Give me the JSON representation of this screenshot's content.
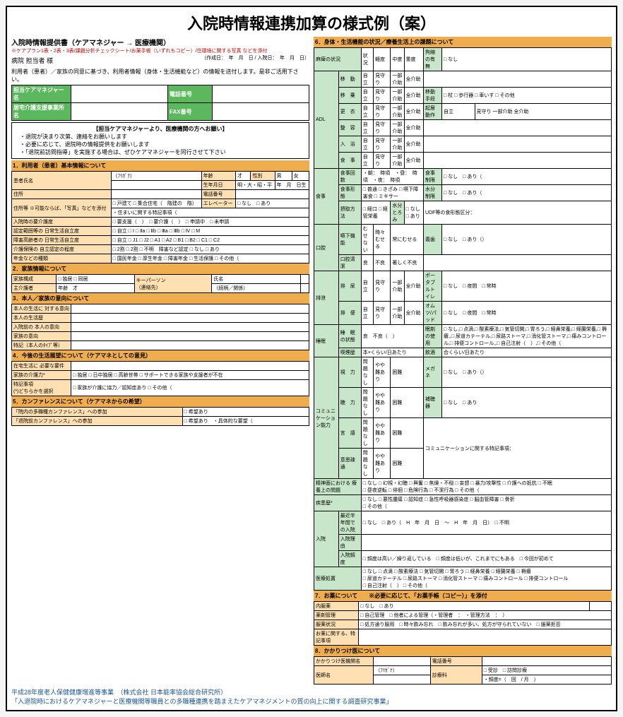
{
  "title": "入院時情報連携加算の様式例（案）",
  "header": {
    "doc_title": "入院時情報提供書（ケアマネジャー → 医療機関）",
    "sub_note": "※ケアプラン1表・2表・3表/課題分析チェックシート/お薬手帳（いずれもコピー）/住環境に関する写真 などを添付",
    "addressee": "病院 担当者 様",
    "date_label": "（作成日：　年　月　日 / 入院日：　年　月　日）",
    "usage_note": "利用者（患者）／家族の同意に基づき、利用者情報（身体・生活機能など）の情報を送付します。是非ご活用下さい。"
  },
  "contact": {
    "mgr_label": "担当ケアマネジャー名",
    "tel_label": "電話番号",
    "office_label": "居宅介護支援事業所名",
    "fax_label": "FAX番号"
  },
  "msgbox": {
    "title": "【担当ケアマネジャーより、医療機関の方へお願い】",
    "items": [
      "・退院が決まり次第、連絡をお願いします",
      "・必要に応じて、退院時の情報提供をお願いします",
      "・「退院前訪問指導」を実施する場合は、ぜひケアマネジャーを同行させて下さい"
    ]
  },
  "sec1": {
    "title": "1．利用者（患者）基本情報について",
    "name": "患者氏名",
    "furigana": "（ﾌﾘｶﾞﾅ）",
    "age": "年齢",
    "sai": "才",
    "sex": "性別",
    "m": "男",
    "f": "女",
    "dob": "生年月日",
    "era": "明・大・昭・平",
    "ymd": "年　月　日生",
    "tel": "電話番号",
    "addr": "住所",
    "addr_opt": "住所等\n※可能ならば、「写真」などを添付",
    "addr_types": [
      "□ 戸建て",
      "□ 集合住宅（　階建の　階）"
    ],
    "elev": "エレベーター",
    "elev_opt": "□ なし　□ あり",
    "live_note": "・住まいに関する特記事項（",
    "care_need": "入院時の要介護度",
    "care_opts": [
      "□ 要支援（　）",
      "□ 要介護（　）",
      "□ 申請中",
      "□ 未申請"
    ],
    "adl_label": "認定範囲等の\n日常生活自立度",
    "adl_opts": [
      "□ 自立",
      "□ Ⅰ",
      "□ Ⅱa",
      "□ Ⅱb",
      "□ Ⅲa",
      "□ Ⅲb",
      "□ Ⅳ",
      "□ M"
    ],
    "dem_label": "障害高齢者の\n日常生活自立度",
    "dem_opts": [
      "□ 自立",
      "□ J1",
      "□ J2",
      "□ A1",
      "□ A2",
      "□ B1",
      "□ B2",
      "□ C1",
      "□ C2"
    ],
    "handi": "介護保険の\n自立認定の程度",
    "handi_opts": [
      "□ 2割",
      "□ 2割",
      "□ 不明",
      "障害など認定",
      "□ なし",
      "□ あり"
    ],
    "pension": "年金などの種類",
    "pension_opts": [
      "□ 国民年金",
      "□ 厚生年金",
      "□ 障害年金",
      "□ 生活保護",
      "□ その他（"
    ]
  },
  "sec2": {
    "title": "2．家族情報について",
    "fam": "家族構成",
    "fam_opts": [
      "□ 独居",
      "□ 同居"
    ],
    "key": "キーパーソン",
    "key_sub": "（連絡先）",
    "key_name": "氏名",
    "key_rel": "（続柄／関係）",
    "caregiver": "主介護者",
    "age": "年齢",
    "sai": "才"
  },
  "sec3": {
    "title": "3．本人／家族の意向について",
    "self_disease": "本人の生活に\n対する意向",
    "self_life": "本人の生活歴",
    "pre_self": "入院前の\n本人の意向",
    "pre_fam": "家族の意向",
    "sp_note": "特記（本人のﾀｲﾌﾟ等）"
  },
  "sec4": {
    "title": "4．今後の生活展望について（ケアマネとしての意見）",
    "home": "在宅生活に\n必要な要件",
    "fam_care": "家族の介護力*",
    "fam_opts": [
      "□ 独居",
      "□ 日中独居",
      "□ 高齢世帯",
      "□ サポートできる家族や支援者が不在"
    ],
    "sp": "特記事項",
    "sp_sub": "(*)どちらかを選択",
    "sp_opts": [
      "□ 家族が介護に協力／認知症あり",
      "□ その他（"
    ]
  },
  "sec5": {
    "title": "5．カンファレンスについて（ケアマネからの希望）",
    "in_conf": "「院内の多職種カンファレンス」への参加",
    "hope": "□ 希望あり",
    "out_conf": "「退院前カンファレンス」への参加",
    "detail": "・具体的な要望（"
  },
  "sec6": {
    "title": "6．身体・生活機能の状況／療養生活上の課題について",
    "paralysis": "麻痺の状況",
    "para_opts": [
      "状況",
      "軽度",
      "中度",
      "重度"
    ],
    "contr": "拘縮の有無",
    "contr_opts": [
      "□ なし",
      "□ あり"
    ],
    "adl_title": "ADL",
    "adl_rows": [
      {
        "k": "移　動",
        "v": [
          "自立",
          "見守り",
          "一部介助",
          "全介助"
        ]
      },
      {
        "k": "移　乗",
        "v": [
          "自立",
          "見守り",
          "一部介助",
          "全介助"
        ],
        "ex": "移動手段",
        "eo": [
          "□ 杖",
          "□ 歩行器",
          "□ 車いす",
          "□ その他"
        ]
      },
      {
        "k": "更　衣",
        "v": [
          "自立",
          "見守り",
          "一部介助",
          "全介助"
        ],
        "ex": "起居動作",
        "eo": [
          "自立",
          "見守り",
          "一部介助",
          "全介助"
        ]
      },
      {
        "k": "整　容",
        "v": [
          "自立",
          "見守り",
          "一部介助",
          "全介助"
        ]
      },
      {
        "k": "入　浴",
        "v": [
          "自立",
          "見守り",
          "一部介助",
          "全介助"
        ]
      },
      {
        "k": "食　事",
        "v": [
          "自立",
          "見守り",
          "一部介助",
          "全介助"
        ]
      }
    ],
    "meal": "食事",
    "meal_times": "食事回数",
    "meal_tv": "・朝：　時頃　・昼：　時頃　・夜：　時頃",
    "meal_sp": "食事制限",
    "meal_spo": "□ なし　□ あり（",
    "meal_form": "食事形態",
    "meal_fo": [
      "□ 普通",
      "□ きざみ",
      "□ 嚥下障害食",
      "□ ミキサー"
    ],
    "water": "水分制限",
    "water_o": "□ なし　□ あり（",
    "intake": "摂取方法",
    "intake_o": [
      "□ 経口",
      "□ 経管栄養"
    ],
    "thick": "水分とろみ",
    "thick_o": "□ なし　□ あり",
    "udf": "UDF等の食形態区分：",
    "oral": "口腔",
    "oral_s": "嚥下機能",
    "oral_o": [
      "むせない",
      "時々むせる",
      "常にむせる"
    ],
    "teeth": "義歯",
    "teeth_o": "□ なし　□ あり（）",
    "care": "口腔清潔",
    "care_o": [
      "良",
      "不良",
      "著しく不良"
    ],
    "excr": "排泄",
    "exc_u": "排　尿",
    "exc_uo": [
      "自立",
      "見守り",
      "一部介助",
      "全介助"
    ],
    "pt": "ポータブルトイレ",
    "pt_o": "□ なし　□ 夜間　□ 常時",
    "exc_b": "排　便",
    "exc_bo": [
      "自立",
      "見守り",
      "一部介助",
      "全介助"
    ],
    "dp": "オムツ/パッド",
    "dp_o": "□ なし　□ 夜間　□ 常時",
    "sleep": "睡眠",
    "sleep_s": "睡　眠の状態",
    "sleep_o": [
      "良",
      "不良（　）"
    ],
    "med": "眠剤の使用",
    "med_o": [
      "□ なし",
      "□ 点滴",
      "□ 酸素療法",
      "□ 気管切開",
      "□ 胃ろう",
      "□ 経鼻栄養",
      "□ 経腸栄養",
      "□ 褥瘡",
      "",
      "□ 尿道カテーテル",
      "□ 尿路ストーマ",
      "□ 消化管ストーマ",
      "□ 痛みコントロール",
      "□ 排便コントロール",
      "",
      "□ 自己注射（　）",
      "□ その他（"
    ],
    "reg": "喫煙歴",
    "reg_o": "本×くらい/日あたり",
    "alc": "飲酒",
    "alc_o": "合くらい/日あたり",
    "comm": "コミュニケーション能力",
    "vis": "視　力",
    "vis_o": [
      "問題なし",
      "やや難あり",
      "困難"
    ],
    "glass": "メガネ",
    "glass_o": "□ なし　□ あり（）",
    "hear": "聴　力",
    "hear_o": [
      "問題なし",
      "やや難あり",
      "困難"
    ],
    "aid": "補聴器",
    "aid_o": "□ なし　□ あり",
    "spk": "言　語",
    "spk_o": [
      "問題なし",
      "やや難あり",
      "困難"
    ],
    "cnote": "コミュニケーションに関する特記事項：",
    "und": "意思疎通",
    "und_o": [
      "問題なし",
      "やや難あり",
      "困難"
    ],
    "psy": "精神面における\n療養上の問題",
    "psy_o": [
      "□ なし",
      "□ 幻視・幻聴",
      "□ 興奮",
      "□ 焦燥・不穏",
      "□ 妄想",
      "□ 暴力/攻撃性",
      "□ 介護への抵抗",
      "□ 不眠",
      "",
      "□ 昼夜逆転",
      "□ 徘徊",
      "□ 危険行為",
      "□ 不潔行為",
      "□ その他（"
    ],
    "illness": "疾患歴*",
    "ill_o": [
      "□ なし",
      "□ 悪性腫瘍",
      "□ 認知症",
      "□ 急性呼吸器感染症",
      "□ 脳血管障害",
      "□ 骨折",
      "",
      "□ その他（"
    ],
    "hosp": "入院",
    "hosp_h": "最近半年間で\nの入院",
    "hosp_o": "□ なし　□ あり（　H　年　月　日　～　H　年　月　日）　□ 不明",
    "hosp_r": "入院理由",
    "hosp_f": "入院頻度",
    "hosp_fo": "□ 頻度は高い／繰り返している　□ 頻度は低いが、これまでにもある　□ 今回が初めて",
    "medcare": "医療処置"
  },
  "sec7": {
    "title": "7．お薬について　　※必要に応じて、「お薬手帳（コピー）」を添付",
    "med": "内服薬",
    "med_o": "□ なし　□ あり",
    "drug": "薬剤管理",
    "drug_o": "□ 自己管理　□ 他者による管理（・管理者　：",
    "tgt": "・管理方法　：",
    "end": "）",
    "adh": "服薬状況",
    "adh_o": "□ 処方通り服用　□ 時々飲み忘れ　□ 飲み忘れが多い、処方が守られていない　□ 服薬拒否",
    "sp": "お薬に関する、特記事項"
  },
  "sec8": {
    "title": "8．かかりつけ医について",
    "clinic": "かかりつけ医機関名",
    "tel": "電話番号",
    "doc": "医師名",
    "furi": "（ﾌﾘｶﾞﾅ）",
    "dept": "診療科",
    "dept_o": "□ 受診　□ 訪問診療",
    "freq": "・頻度=（　回　/ 月　）"
  },
  "footer": {
    "l1": "平成28年度老人保健健康増進等事業　（株式会社 日本能率協会総合研究所）",
    "l2": "「入退院時におけるケアマネジャーと医療機関等職員との多職種連携を踏まえたケアマネジメントの質の向上に関する調査研究事業」"
  }
}
